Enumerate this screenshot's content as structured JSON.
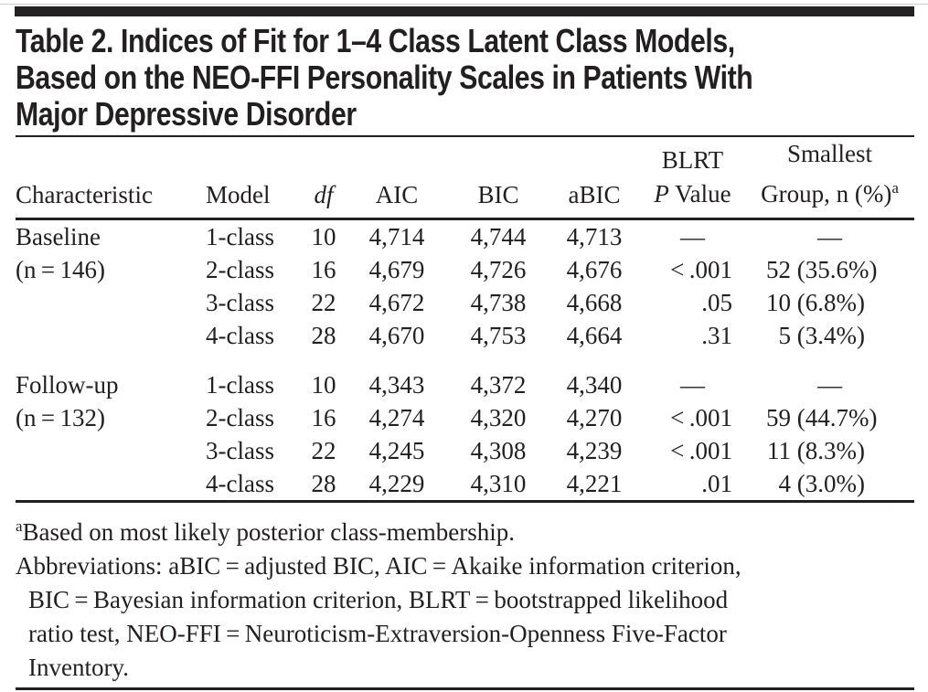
{
  "colors": {
    "ink": "#231f20",
    "title_bar": "#242122",
    "hairline": "#cccccc",
    "background": "#ffffff"
  },
  "title": {
    "lines": [
      "Table 2. Indices of Fit for 1–4 Class Latent Class Models,",
      "Based on the NEO-FFI Personality Scales in Patients With",
      "Major Depressive Disorder"
    ]
  },
  "table": {
    "header": {
      "characteristic": "Characteristic",
      "model": "Model",
      "df": "df",
      "aic": "AIC",
      "bic": "BIC",
      "abic": "aBIC",
      "blrt_line1": "BLRT",
      "blrt_line2_italic": "P",
      "blrt_line2_rest": "Value",
      "smallest_line1": "Smallest",
      "smallest_line2": "Group, n (%)",
      "smallest_sup": "a"
    },
    "groups": [
      {
        "characteristic_lines": [
          "Baseline",
          "(n = 146)"
        ],
        "rows": [
          {
            "model": "1-class",
            "df": "10",
            "aic": "4,714",
            "bic": "4,744",
            "abic": "4,713",
            "blrt_p": "—",
            "smallest": "—"
          },
          {
            "model": "2-class",
            "df": "16",
            "aic": "4,679",
            "bic": "4,726",
            "abic": "4,676",
            "blrt_p": "< .001",
            "smallest": "52 (35.6%)"
          },
          {
            "model": "3-class",
            "df": "22",
            "aic": "4,672",
            "bic": "4,738",
            "abic": "4,668",
            "blrt_p": ".05",
            "smallest": "10 (6.8%)"
          },
          {
            "model": "4-class",
            "df": "28",
            "aic": "4,670",
            "bic": "4,753",
            "abic": "4,664",
            "blrt_p": ".31",
            "smallest": "5 (3.4%)"
          }
        ]
      },
      {
        "characteristic_lines": [
          "Follow-up",
          "(n = 132)"
        ],
        "rows": [
          {
            "model": "1-class",
            "df": "10",
            "aic": "4,343",
            "bic": "4,372",
            "abic": "4,340",
            "blrt_p": "—",
            "smallest": "—"
          },
          {
            "model": "2-class",
            "df": "16",
            "aic": "4,274",
            "bic": "4,320",
            "abic": "4,270",
            "blrt_p": "< .001",
            "smallest": "59 (44.7%)"
          },
          {
            "model": "3-class",
            "df": "22",
            "aic": "4,245",
            "bic": "4,308",
            "abic": "4,239",
            "blrt_p": "< .001",
            "smallest": "11 (8.3%)"
          },
          {
            "model": "4-class",
            "df": "28",
            "aic": "4,229",
            "bic": "4,310",
            "abic": "4,221",
            "blrt_p": ".01",
            "smallest": "4 (3.0%)"
          }
        ]
      }
    ]
  },
  "footnotes": {
    "note_a_sup": "a",
    "note_a_text": "Based on most likely posterior class-membership.",
    "abbreviation_lines": [
      "Abbreviations: aBIC = adjusted BIC, AIC = Akaike information criterion,",
      "BIC = Bayesian information criterion, BLRT = bootstrapped likelihood",
      "ratio test, NEO-FFI = Neuroticism-Extraversion-Openness Five-Factor",
      "Inventory."
    ]
  }
}
